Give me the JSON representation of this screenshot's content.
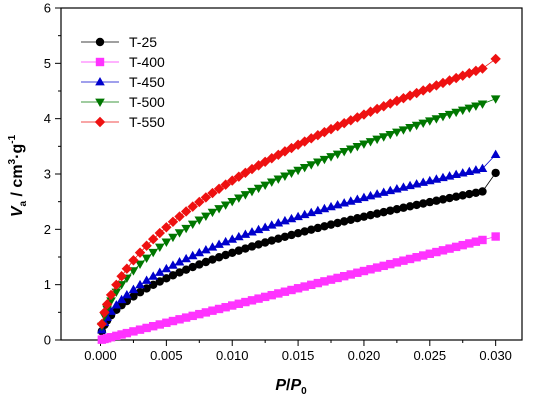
{
  "chart_data": {
    "type": "scatter",
    "title": "",
    "xlabel": {
      "main": "P",
      "slash": "/",
      "main2": "P",
      "sub": "0"
    },
    "ylabel": {
      "main": "V",
      "sub": "a",
      "unit": " / cm",
      "sup1": "3",
      "dot": "·g",
      "sup2": "-1"
    },
    "xlim": [
      -0.003,
      0.032
    ],
    "ylim": [
      0,
      6
    ],
    "x_ticks": [
      0.0,
      0.005,
      0.01,
      0.015,
      0.02,
      0.025,
      0.03
    ],
    "x_tick_labels": [
      "0.000",
      "0.005",
      "0.010",
      "0.015",
      "0.020",
      "0.025",
      "0.030"
    ],
    "y_ticks": [
      0,
      1,
      2,
      3,
      4,
      5,
      6
    ],
    "y_tick_labels": [
      "0",
      "1",
      "2",
      "3",
      "4",
      "5",
      "6"
    ],
    "grid": false,
    "legend_position": "top-left",
    "x_points": [
      0.0001,
      0.0003,
      0.0005,
      0.0008,
      0.0012,
      0.0016,
      0.002,
      0.0025,
      0.003,
      0.0035,
      0.004,
      0.0045,
      0.005,
      0.0055,
      0.006,
      0.0065,
      0.007,
      0.0075,
      0.008,
      0.0085,
      0.009,
      0.0095,
      0.01,
      0.0105,
      0.011,
      0.0115,
      0.012,
      0.0125,
      0.013,
      0.0135,
      0.014,
      0.0145,
      0.015,
      0.0155,
      0.016,
      0.0165,
      0.017,
      0.0175,
      0.018,
      0.0185,
      0.019,
      0.0195,
      0.02,
      0.0205,
      0.021,
      0.0215,
      0.022,
      0.0225,
      0.023,
      0.0235,
      0.024,
      0.0245,
      0.025,
      0.0255,
      0.026,
      0.0265,
      0.027,
      0.0275,
      0.028,
      0.0285,
      0.029,
      0.03
    ],
    "series": [
      {
        "name": "T-25",
        "color": "#000000",
        "marker": "circle",
        "endpoint": [
          0.03,
          3.02
        ],
        "knee": 0.8,
        "k": 2.73
      },
      {
        "name": "T-400",
        "color": "#ff33ff",
        "marker": "square",
        "endpoint": [
          0.03,
          1.87
        ],
        "knee": 0.0,
        "k": 1.87
      },
      {
        "name": "T-450",
        "color": "#0000cc",
        "marker": "triangle-up",
        "endpoint": [
          0.03,
          3.35
        ],
        "knee": 0.8,
        "k": 3.15
      },
      {
        "name": "T-500",
        "color": "#007700",
        "marker": "triangle-down",
        "endpoint": [
          0.03,
          4.36
        ],
        "knee": 0.8,
        "k": 4.34
      },
      {
        "name": "T-550",
        "color": "#ee1111",
        "marker": "diamond",
        "endpoint": [
          0.03,
          5.08
        ],
        "knee": 0.8,
        "k": 4.99
      }
    ]
  }
}
